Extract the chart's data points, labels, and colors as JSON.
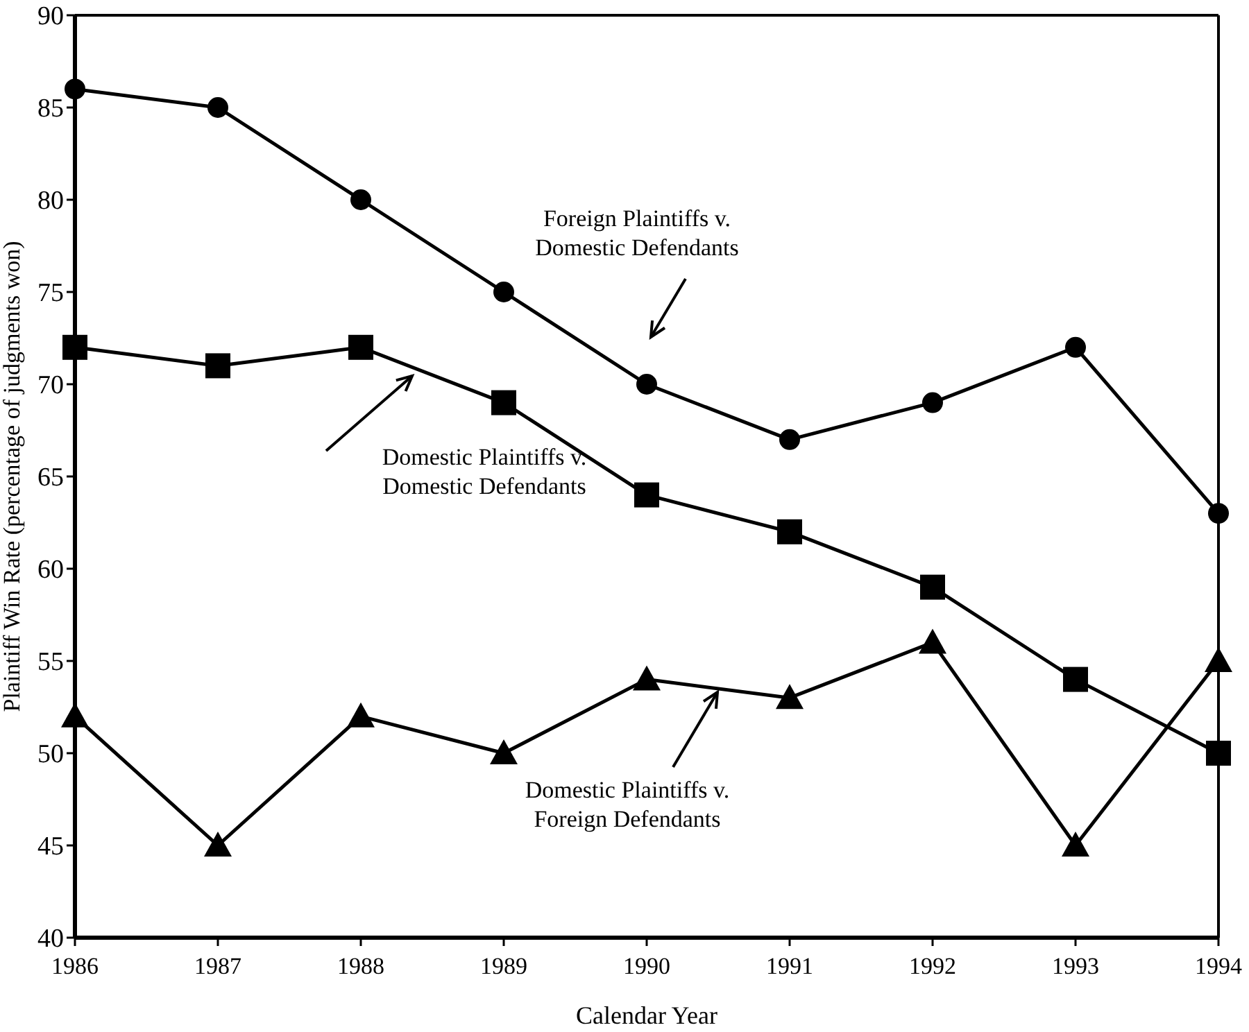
{
  "chart_data": {
    "type": "line",
    "xlabel": "Calendar Year",
    "ylabel": "Plaintiff Win Rate (percentage of judgments won)",
    "x": [
      1986,
      1987,
      1988,
      1989,
      1990,
      1991,
      1992,
      1993,
      1994
    ],
    "xlim": [
      1986,
      1994
    ],
    "xticks": [
      1986,
      1987,
      1988,
      1989,
      1990,
      1991,
      1992,
      1993,
      1994
    ],
    "ylim": [
      40,
      90
    ],
    "yticks": [
      40,
      45,
      50,
      55,
      60,
      65,
      70,
      75,
      80,
      85,
      90
    ],
    "line_style": "solid",
    "series": [
      {
        "name": "Foreign Plaintiffs v. Domestic Defendants",
        "color": "#000000",
        "marker": "circle",
        "values": [
          86,
          85,
          80,
          75,
          70,
          67,
          69,
          72,
          63
        ]
      },
      {
        "name": "Domestic Plaintiffs v. Domestic Defendants",
        "color": "#000000",
        "marker": "square",
        "values": [
          72,
          71,
          72,
          69,
          64,
          62,
          59,
          54,
          50
        ]
      },
      {
        "name": "Domestic Plaintiffs v. Foreign Defendants",
        "color": "#000000",
        "marker": "triangle",
        "values": [
          52,
          45,
          52,
          50,
          54,
          53,
          56,
          45,
          55
        ]
      }
    ]
  }
}
